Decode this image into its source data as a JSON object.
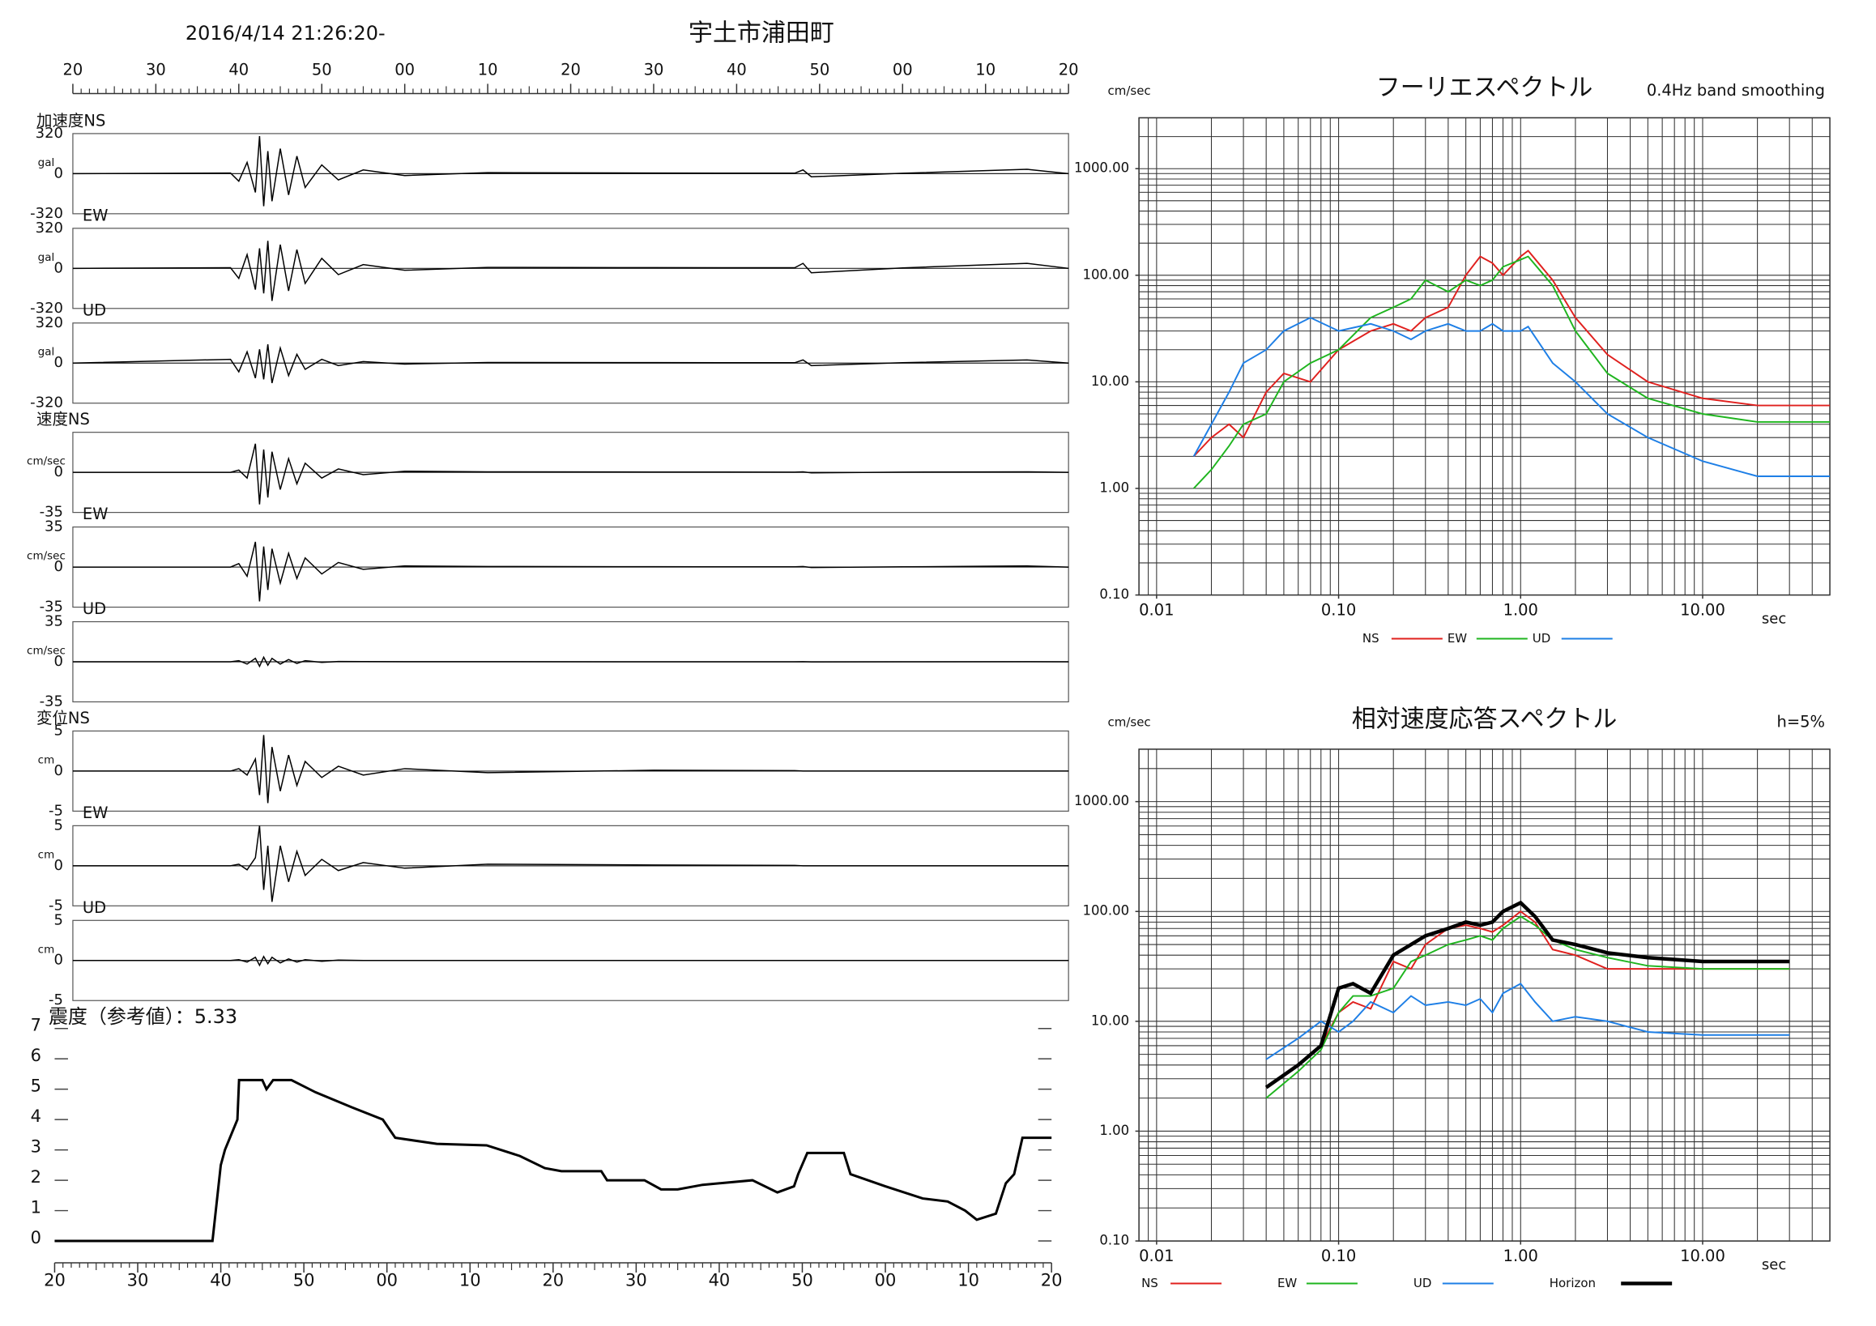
{
  "chart_data": [
    {
      "type": "waveform",
      "title": "宇土市浦田町",
      "subtitle": "2016/4/14 21:26:20-",
      "xlim": [
        0,
        120
      ],
      "xticks": [
        {
          "value": 0,
          "label": "20"
        },
        {
          "value": 10,
          "label": "30"
        },
        {
          "value": 20,
          "label": "40"
        },
        {
          "value": 30,
          "label": "50"
        },
        {
          "value": 40,
          "label": "00"
        },
        {
          "value": 50,
          "label": "10"
        },
        {
          "value": 60,
          "label": "20"
        },
        {
          "value": 70,
          "label": "30"
        },
        {
          "value": 80,
          "label": "40"
        },
        {
          "value": 90,
          "label": "50"
        },
        {
          "value": 100,
          "label": "00"
        },
        {
          "value": 110,
          "label": "10"
        },
        {
          "value": 120,
          "label": "20"
        }
      ],
      "x": [
        0,
        19,
        20,
        21,
        22,
        22.5,
        23,
        23.5,
        24,
        25,
        26,
        27,
        28,
        30,
        32,
        35,
        40,
        50,
        70,
        87,
        88,
        89,
        100,
        115,
        120
      ],
      "series": [
        {
          "name": "加速度NS",
          "unit": "gal",
          "color": "#000000",
          "ylim": [
            -320,
            320
          ],
          "yticks": [
            -320,
            0,
            320
          ],
          "values": [
            0,
            5,
            -60,
            90,
            -150,
            300,
            -260,
            180,
            -220,
            200,
            -170,
            140,
            -110,
            70,
            -50,
            30,
            -15,
            8,
            5,
            4,
            30,
            -25,
            3,
            35,
            0
          ]
        },
        {
          "name": "EW",
          "unit": "gal",
          "color": "#000000",
          "ylim": [
            -320,
            320
          ],
          "yticks": [
            -320,
            0,
            320
          ],
          "values": [
            0,
            5,
            -80,
            110,
            -170,
            160,
            -200,
            220,
            -260,
            190,
            -180,
            150,
            -120,
            80,
            -50,
            30,
            -15,
            8,
            6,
            5,
            40,
            -35,
            4,
            40,
            0
          ]
        },
        {
          "name": "UD",
          "unit": "gal",
          "color": "#000000",
          "ylim": [
            -320,
            320
          ],
          "yticks": [
            -320,
            0,
            320
          ],
          "values": [
            0,
            30,
            -70,
            90,
            -120,
            110,
            -130,
            150,
            -160,
            120,
            -100,
            70,
            -50,
            30,
            -20,
            12,
            -8,
            5,
            4,
            3,
            25,
            -20,
            3,
            25,
            0
          ]
        },
        {
          "name": "速度NS",
          "unit": "cm/sec",
          "color": "#000000",
          "ylim": [
            -35,
            35
          ],
          "yticks": [
            -35,
            0
          ],
          "values": [
            0,
            0,
            2,
            -5,
            25,
            -28,
            20,
            -22,
            18,
            -15,
            12,
            -10,
            8,
            -5,
            3,
            -2,
            1,
            0.5,
            0.3,
            0.2,
            0.5,
            -0.4,
            0.2,
            0.5,
            0
          ]
        },
        {
          "name": "EW",
          "unit": "cm/sec",
          "color": "#000000",
          "ylim": [
            -35,
            35
          ],
          "yticks": [
            -35,
            0,
            35
          ],
          "values": [
            0,
            0,
            3,
            -8,
            22,
            -30,
            18,
            -20,
            16,
            -14,
            12,
            -10,
            8,
            -6,
            4,
            -2,
            1,
            0.5,
            0.3,
            0.2,
            0.5,
            -0.4,
            0.2,
            1,
            0
          ]
        },
        {
          "name": "UD",
          "unit": "cm/sec",
          "color": "#000000",
          "ylim": [
            -35,
            35
          ],
          "yticks": [
            -35,
            0,
            35
          ],
          "values": [
            0,
            0,
            1,
            -2,
            3,
            -4,
            4,
            -3,
            3,
            -2,
            2,
            -1.5,
            1,
            -0.5,
            0.3,
            0.2,
            0.1,
            0.1,
            0,
            0,
            0.1,
            -0.1,
            0,
            0.1,
            0
          ]
        },
        {
          "name": "変位NS",
          "unit": "cm",
          "color": "#000000",
          "ylim": [
            -5,
            5
          ],
          "yticks": [
            -5,
            0,
            5
          ],
          "values": [
            0,
            0,
            0.3,
            -0.5,
            1.5,
            -3,
            4.5,
            -4,
            3,
            -2.5,
            2,
            -1.8,
            1.2,
            -0.8,
            0.6,
            -0.5,
            0.3,
            -0.2,
            0.1,
            0.05,
            0,
            0,
            0,
            0,
            0
          ]
        },
        {
          "name": "EW",
          "unit": "cm",
          "color": "#000000",
          "ylim": [
            -5,
            5
          ],
          "yticks": [
            -5,
            0,
            5
          ],
          "values": [
            0,
            0,
            0.2,
            -0.5,
            1,
            5,
            -3,
            2.5,
            -4.5,
            2.5,
            -2,
            1.8,
            -1.2,
            0.8,
            -0.6,
            0.4,
            -0.3,
            0.2,
            0.1,
            0.05,
            0,
            0,
            0,
            0,
            0
          ]
        },
        {
          "name": "UD",
          "unit": "cm",
          "color": "#000000",
          "ylim": [
            -5,
            5
          ],
          "yticks": [
            -5,
            0,
            5
          ],
          "values": [
            0,
            0,
            0.1,
            -0.2,
            0.4,
            -0.6,
            0.5,
            -0.4,
            0.4,
            -0.3,
            0.2,
            -0.2,
            0.1,
            -0.1,
            0.05,
            0,
            0,
            0,
            0,
            0,
            0,
            0,
            0,
            0,
            0
          ]
        }
      ]
    },
    {
      "type": "line",
      "title": "震度（参考値）：5.33",
      "color": "#000000",
      "xlim": [
        0,
        120
      ],
      "xticks": [
        {
          "value": 0,
          "label": "20"
        },
        {
          "value": 10,
          "label": "30"
        },
        {
          "value": 20,
          "label": "40"
        },
        {
          "value": 30,
          "label": "50"
        },
        {
          "value": 40,
          "label": "00"
        },
        {
          "value": 50,
          "label": "10"
        },
        {
          "value": 60,
          "label": "20"
        },
        {
          "value": 70,
          "label": "30"
        },
        {
          "value": 80,
          "label": "40"
        },
        {
          "value": 90,
          "label": "50"
        },
        {
          "value": 100,
          "label": "00"
        },
        {
          "value": 110,
          "label": "10"
        },
        {
          "value": 120,
          "label": "20"
        }
      ],
      "ylim": [
        0,
        7
      ],
      "yticks": [
        0,
        1,
        2,
        3,
        4,
        5,
        6,
        7
      ],
      "x": [
        0,
        19,
        20,
        20.5,
        22,
        22.2,
        25,
        25.5,
        26.3,
        28.5,
        31.4,
        35.8,
        39.5,
        41,
        46,
        52,
        56,
        59,
        61,
        65.8,
        66.5,
        71,
        73,
        75,
        78,
        84,
        87,
        89,
        89.5,
        90.6,
        95,
        95.8,
        100,
        104.5,
        107.5,
        109.6,
        111,
        113.3,
        114.5,
        115.5,
        116.5,
        120
      ],
      "values": [
        0,
        0,
        2.5,
        3,
        4,
        5.3,
        5.3,
        5.0,
        5.3,
        5.3,
        4.9,
        4.4,
        4.0,
        3.4,
        3.2,
        3.15,
        2.8,
        2.4,
        2.3,
        2.3,
        2.0,
        2.0,
        1.7,
        1.7,
        1.85,
        2.0,
        1.6,
        1.8,
        2.2,
        2.9,
        2.9,
        2.2,
        1.8,
        1.4,
        1.3,
        1.0,
        0.7,
        0.9,
        1.9,
        2.2,
        3.4,
        3.4
      ]
    },
    {
      "type": "line",
      "log": true,
      "grid": true,
      "title": "フーリエスペクトル",
      "subtitle": "0.4Hz band smoothing",
      "y_label": "cm/sec",
      "x_label": "sec",
      "xlim": [
        0.008,
        50
      ],
      "ylim": [
        0.1,
        3000
      ],
      "xticks": [
        0.01,
        {
          "value": 0.1,
          "label": "0.10"
        },
        {
          "value": 1,
          "label": "1.00"
        },
        {
          "value": 10,
          "label": "10.00"
        }
      ],
      "yticks": [
        {
          "value": 0.1,
          "label": "0.10"
        },
        {
          "value": 1,
          "label": "1.00"
        },
        {
          "value": 10,
          "label": "10.00"
        },
        {
          "value": 100,
          "label": "100.00"
        },
        {
          "value": 1000,
          "label": "1000.00"
        }
      ],
      "x": [
        0.016,
        0.02,
        0.025,
        0.03,
        0.04,
        0.05,
        0.07,
        0.1,
        0.15,
        0.2,
        0.25,
        0.3,
        0.4,
        0.5,
        0.6,
        0.7,
        0.8,
        1.0,
        1.1,
        1.5,
        2,
        3,
        5,
        10,
        20,
        50
      ],
      "series": [
        {
          "name": "NS",
          "color": "#e0201e",
          "values": [
            2,
            3,
            4,
            3,
            8,
            12,
            10,
            20,
            30,
            35,
            30,
            40,
            50,
            100,
            150,
            130,
            100,
            150,
            170,
            90,
            40,
            18,
            10,
            7,
            6,
            6
          ]
        },
        {
          "name": "EW",
          "color": "#1fb51f",
          "values": [
            1,
            1.5,
            2.5,
            4,
            5,
            10,
            15,
            20,
            40,
            50,
            60,
            90,
            70,
            90,
            80,
            90,
            120,
            140,
            150,
            80,
            30,
            12,
            7,
            5,
            4.2,
            4.2
          ]
        },
        {
          "name": "UD",
          "color": "#1e7fe6",
          "values": [
            2,
            4,
            8,
            15,
            20,
            30,
            40,
            30,
            35,
            30,
            25,
            30,
            35,
            30,
            30,
            35,
            30,
            30,
            33,
            15,
            10,
            5,
            3,
            1.8,
            1.3,
            1.3
          ]
        }
      ]
    },
    {
      "type": "line",
      "log": true,
      "grid": true,
      "title": "相対速度応答スペクトル",
      "subtitle": "h=5%",
      "y_label": "cm/sec",
      "x_label": "sec",
      "xlim": [
        0.008,
        50
      ],
      "ylim": [
        0.1,
        3000
      ],
      "xticks": [
        0.01,
        {
          "value": 0.1,
          "label": "0.10"
        },
        {
          "value": 1,
          "label": "1.00"
        },
        {
          "value": 10,
          "label": "10.00"
        }
      ],
      "yticks": [
        {
          "value": 0.1,
          "label": "0.10"
        },
        {
          "value": 1,
          "label": "1.00"
        },
        {
          "value": 10,
          "label": "10.00"
        },
        {
          "value": 100,
          "label": "100.00"
        },
        {
          "value": 1000,
          "label": "1000.00"
        }
      ],
      "x": [
        0.04,
        0.06,
        0.08,
        0.1,
        0.12,
        0.15,
        0.2,
        0.25,
        0.3,
        0.4,
        0.5,
        0.6,
        0.7,
        0.8,
        1.0,
        1.2,
        1.5,
        2,
        3,
        5,
        10,
        20,
        30
      ],
      "series": [
        {
          "name": "NS",
          "color": "#e0201e",
          "values": [
            2.5,
            4,
            6,
            12,
            15,
            13,
            35,
            30,
            50,
            70,
            75,
            70,
            65,
            75,
            100,
            80,
            45,
            40,
            30,
            30,
            30,
            30,
            30
          ]
        },
        {
          "name": "EW",
          "color": "#1fb51f",
          "values": [
            2,
            3.5,
            5.5,
            12,
            17,
            17,
            20,
            35,
            40,
            50,
            55,
            60,
            55,
            70,
            90,
            75,
            55,
            45,
            38,
            32,
            30,
            30,
            30
          ]
        },
        {
          "name": "UD",
          "color": "#1e7fe6",
          "values": [
            4.5,
            7,
            10,
            8,
            10,
            15,
            12,
            17,
            14,
            15,
            14,
            16,
            12,
            18,
            22,
            15,
            10,
            11,
            10,
            8,
            7.5,
            7.5,
            7.5
          ]
        },
        {
          "name": "Horizon",
          "color": "#000000",
          "line_width": 3,
          "values": [
            2.5,
            4,
            6,
            20,
            22,
            18,
            40,
            50,
            60,
            70,
            80,
            75,
            80,
            100,
            120,
            90,
            55,
            50,
            42,
            38,
            35,
            35,
            35
          ]
        }
      ]
    }
  ]
}
